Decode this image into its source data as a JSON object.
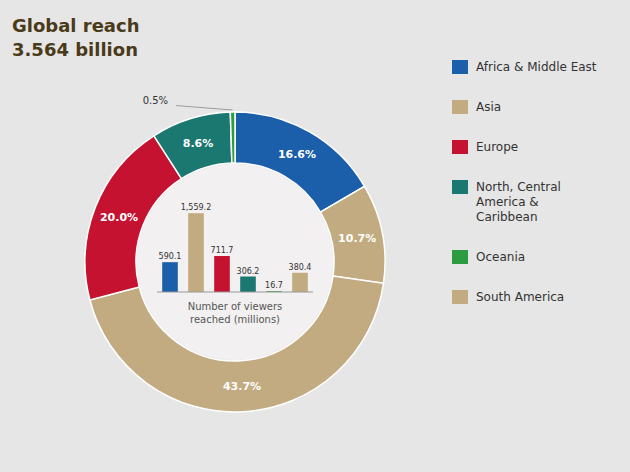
{
  "chart_data": [
    {
      "type": "pie",
      "title": "Global reach",
      "subtitle": "3.564 billion",
      "values": [
        16.6,
        10.7,
        43.7,
        20.0,
        8.6,
        0.5
      ],
      "colors": [
        "#1b5faa",
        "#c2ab80",
        "#c2ab80",
        "#c41230",
        "#1a7870",
        "#2d9b3f"
      ],
      "value_labels": [
        "16.6%",
        "10.7%",
        "43.7%",
        "20.0%",
        "8.6%",
        "0.5%"
      ],
      "data_labels": true
    },
    {
      "type": "bar",
      "categories": [
        "Africa & Middle East",
        "Asia",
        "Europe",
        "North, Central\nAmerica &\nCaribbean",
        "Oceania",
        "South America"
      ],
      "values": [
        590.1,
        1559.2,
        711.7,
        306.2,
        16.7,
        380.4
      ],
      "colors": [
        "#1b5faa",
        "#c2ab80",
        "#c41230",
        "#1a7870",
        "#2d9b3f",
        "#c2ab80"
      ],
      "value_labels": [
        "590.1",
        "1,559.2",
        "711.7",
        "306.2",
        "16.7",
        "380.4"
      ],
      "data_labels": true,
      "xlabel": "Number of viewers\nreached (millions)",
      "ylim": [
        0,
        1820
      ],
      "tick_labels": false,
      "legend": "right"
    }
  ]
}
